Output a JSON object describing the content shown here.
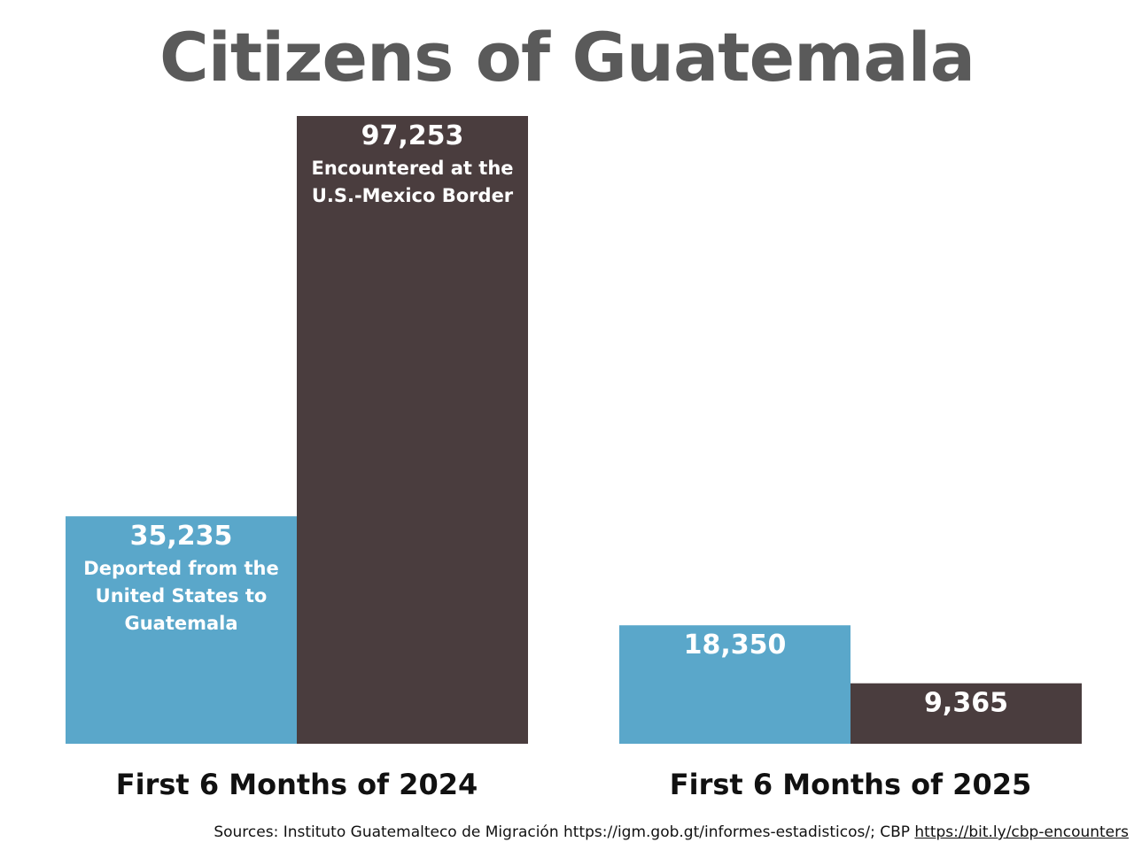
{
  "chart_data": {
    "type": "bar",
    "title": "Citizens of Guatemala",
    "categories": [
      "First 6 Months of 2024",
      "First 6 Months of 2025"
    ],
    "series": [
      {
        "name": "Deported from the United States to Guatemala",
        "color": "#5aa7ca",
        "values": [
          35235,
          18350
        ],
        "value_labels": [
          "35,235",
          "18,350"
        ],
        "desc_lines": [
          [
            "Deported from the",
            "United States to",
            "Guatemala"
          ],
          []
        ]
      },
      {
        "name": "Encountered at the U.S.-Mexico Border",
        "color": "#4a3d3e",
        "values": [
          97253,
          9365
        ],
        "value_labels": [
          "97,253",
          "9,365"
        ],
        "desc_lines": [
          [
            "Encountered at the",
            "U.S.-Mexico Border"
          ],
          []
        ]
      }
    ],
    "ylim": [
      0,
      97253
    ],
    "grid": false,
    "legend": "none"
  },
  "sources": {
    "prefix": "Sources: Instituto Guatemalteco de Migración https://igm.gob.gt/informes-estadisticos/; CBP ",
    "link_text": "https://bit.ly/cbp-encounters"
  }
}
